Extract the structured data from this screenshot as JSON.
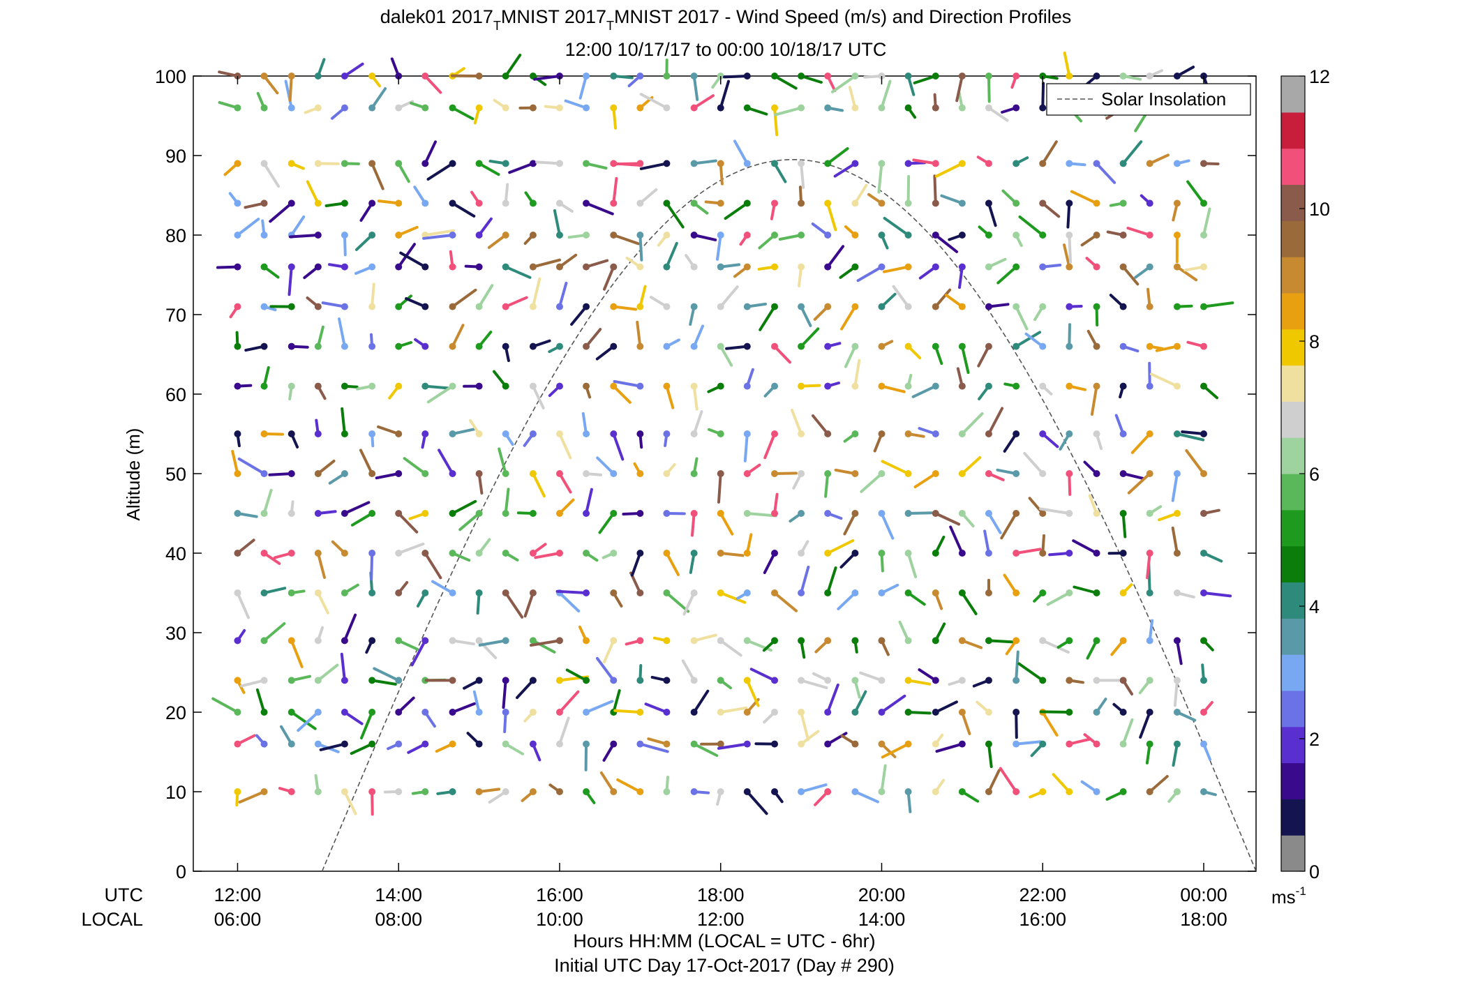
{
  "chart_data": {
    "type": "wind-barb-profile",
    "title": "dalek01 2017_T_MNIST 2017_T_MNIST 2017 - Wind Speed (m/s) and Direction Profiles",
    "title_parts": [
      "dalek01 2017",
      "T",
      "MNIST 2017",
      "T",
      "MNIST 2017 - Wind Speed (m/s) and Direction Profiles"
    ],
    "subtitle": "12:00 10/17/17 to 00:00 10/18/17  UTC",
    "ylabel": "Altitude (m)",
    "ylim": [
      0,
      100
    ],
    "yticks": [
      "0",
      "10",
      "20",
      "30",
      "40",
      "50",
      "60",
      "70",
      "80",
      "90",
      "100"
    ],
    "xlim_hours": [
      11.45,
      24.65
    ],
    "xticks_utc": [
      "12:00",
      "14:00",
      "16:00",
      "18:00",
      "20:00",
      "22:00",
      "00:00"
    ],
    "xticks_local": [
      "06:00",
      "08:00",
      "10:00",
      "12:00",
      "14:00",
      "16:00",
      "18:00"
    ],
    "xtick_hours": [
      12,
      14,
      16,
      18,
      20,
      22,
      24
    ],
    "utc_label": "UTC",
    "local_label": "LOCAL",
    "xlabel": "Hours HH:MM  (LOCAL = UTC - 6hr)",
    "xlabel2": "Initial UTC Day 17-Oct-2017 (Day # 290)",
    "legend": "Solar Insolation",
    "legend_placement": "top-right",
    "colorbar": {
      "range": [
        0,
        12
      ],
      "ticks": [
        "0",
        "2",
        "4",
        "6",
        "8",
        "10",
        "12"
      ],
      "unit": "ms",
      "unit_exp": "-1"
    },
    "solar_insolation": {
      "start_hour": 13.05,
      "peak_hour": 18.9,
      "peak_altitude": 89.5,
      "end_hour": 24.65
    },
    "altitudes": [
      10,
      16,
      20,
      24,
      29,
      35,
      40,
      45,
      50,
      55,
      61,
      66,
      71,
      76,
      80,
      84,
      89,
      96,
      100
    ],
    "time_hours": [
      12.0,
      12.33,
      12.67,
      13.0,
      13.33,
      13.67,
      14.0,
      14.33,
      14.67,
      15.0,
      15.33,
      15.67,
      16.0,
      16.33,
      16.67,
      17.0,
      17.33,
      17.67,
      18.0,
      18.33,
      18.67,
      19.0,
      19.33,
      19.67,
      20.0,
      20.33,
      20.67,
      21.0,
      21.33,
      21.67,
      22.0,
      22.33,
      22.67,
      23.0,
      23.33,
      23.67,
      24.0
    ]
  },
  "colors": {
    "colormap": [
      "#8a8a8a",
      "#141450",
      "#3a0a8c",
      "#5a2fd0",
      "#6a72e6",
      "#78a8f2",
      "#5a9aa8",
      "#2e8a7a",
      "#0a7d0a",
      "#1e9a1e",
      "#5ab85a",
      "#9ed29e",
      "#cfcfcf",
      "#f0e0a0",
      "#f0c800",
      "#e8a010",
      "#c88a30",
      "#9a6a3a",
      "#8a5a4a",
      "#f0507a",
      "#c81e3c",
      "#a8a8a8"
    ],
    "insolation_line": "#555555"
  }
}
